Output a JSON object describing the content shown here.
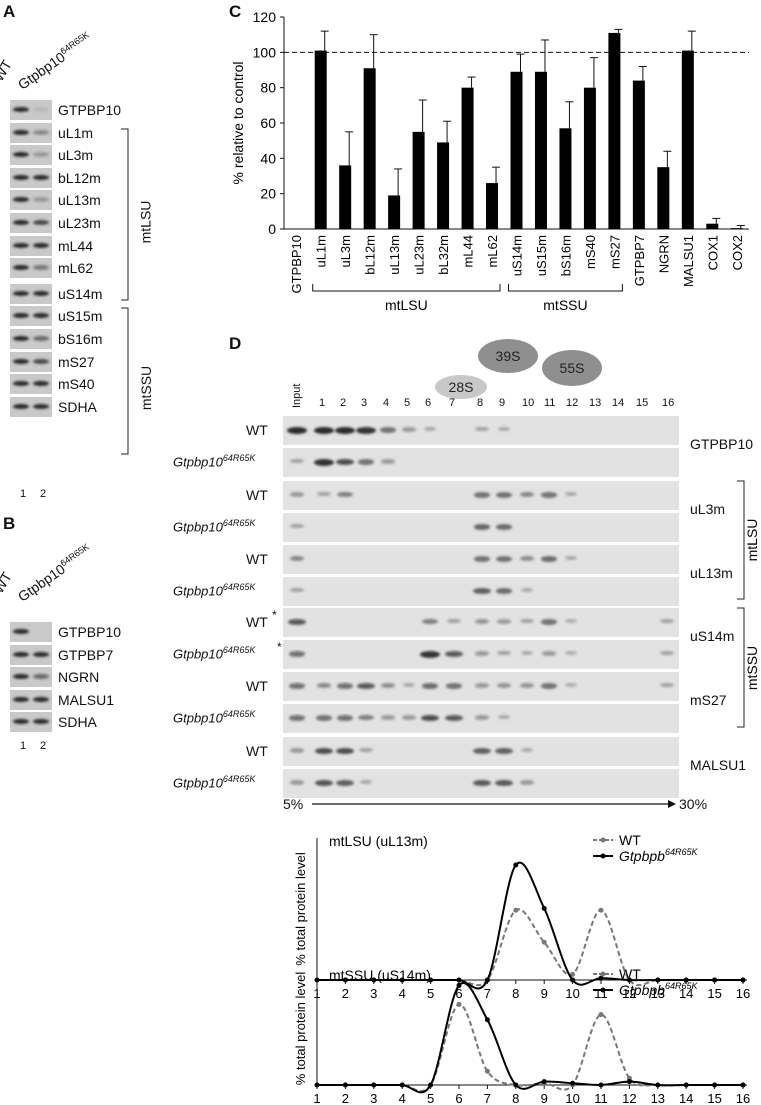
{
  "panels": {
    "a": "A",
    "b": "B",
    "c": "C",
    "d": "D"
  },
  "panel_a": {
    "lane_wt": "WT",
    "lane_mut_base": "Gtpbp10",
    "lane_mut_sup": "64R65K",
    "rows": [
      "GTPBP10",
      "uL1m",
      "uL3m",
      "bL12m",
      "uL13m",
      "uL23m",
      "mL44",
      "mL62",
      "uS14m",
      "uS15m",
      "bS16m",
      "mS27",
      "mS40",
      "SDHA"
    ],
    "group_lsu": "mtLSU",
    "group_ssu": "mtSSU",
    "lane_nums": [
      "1",
      "2"
    ]
  },
  "panel_b": {
    "lane_wt": "WT",
    "lane_mut_base": "Gtpbp10",
    "lane_mut_sup": "64R65K",
    "rows": [
      "GTPBP10",
      "GTPBP7",
      "NGRN",
      "MALSU1",
      "SDHA"
    ],
    "lane_nums": [
      "1",
      "2"
    ]
  },
  "panel_c": {
    "chart_data": {
      "type": "bar",
      "ylabel": "% relative to control",
      "ylim": [
        0,
        120
      ],
      "yticks": [
        0,
        20,
        40,
        60,
        80,
        100,
        120
      ],
      "reference_line": 100,
      "categories": [
        "GTPBP10",
        "uL1m",
        "uL3m",
        "bL12m",
        "uL13m",
        "uL23m",
        "bL32m",
        "mL44",
        "mL62",
        "uS14m",
        "uS15m",
        "bS16m",
        "mS40",
        "mS27",
        "GTPBP7",
        "NGRN",
        "MALSU1",
        "COX1",
        "COX2"
      ],
      "values": [
        0,
        101,
        36,
        91,
        19,
        55,
        49,
        80,
        26,
        89,
        89,
        57,
        80,
        111,
        84,
        35,
        101,
        3,
        0.5
      ],
      "errors": [
        0,
        11,
        19,
        19,
        15,
        18,
        12,
        6,
        9,
        10,
        18,
        15,
        17,
        2,
        8,
        9,
        11,
        3,
        1.5
      ],
      "groups": [
        {
          "label": "mtLSU",
          "from": 1,
          "to": 8
        },
        {
          "label": "mtSSU",
          "from": 9,
          "to": 13
        }
      ]
    }
  },
  "panel_d": {
    "particles": [
      "28S",
      "39S",
      "55S"
    ],
    "lanes": [
      "Input",
      "1",
      "2",
      "3",
      "4",
      "5",
      "6",
      "7",
      "8",
      "9",
      "10",
      "11",
      "12",
      "13",
      "14",
      "15",
      "16"
    ],
    "wt": "WT",
    "mut_base": "Gtpbp10",
    "mut_sup": "64R65K",
    "asterisk": "*",
    "blots": [
      {
        "protein": "GTPBP10",
        "wt": [
          3,
          3,
          3,
          2,
          1,
          0.4,
          0.2,
          0,
          0.3,
          0.2,
          0,
          0,
          0,
          0,
          0,
          0,
          0
        ],
        "mut": [
          0.3,
          2,
          1.6,
          1,
          0.4,
          0,
          0,
          0,
          0,
          0,
          0,
          0,
          0,
          0,
          0,
          0,
          0
        ]
      },
      {
        "protein": "uL3m",
        "wt": [
          0.4,
          0.3,
          0.8,
          0,
          0,
          0,
          0,
          0,
          1,
          1,
          0.7,
          1,
          0.2,
          0,
          0,
          0,
          0
        ],
        "mut": [
          0.3,
          0,
          0,
          0,
          0,
          0,
          0,
          0,
          1.2,
          1.1,
          0,
          0,
          0,
          0,
          0,
          0,
          0
        ]
      },
      {
        "protein": "uL13m",
        "wt": [
          0.7,
          0,
          0,
          0,
          0,
          0,
          0,
          0,
          1,
          1,
          0.6,
          1.1,
          0.2,
          0,
          0,
          0,
          0
        ],
        "mut": [
          0.3,
          0,
          0,
          0,
          0,
          0,
          0,
          0,
          1.3,
          1.1,
          0.2,
          0,
          0,
          0,
          0,
          0,
          0
        ]
      },
      {
        "protein": "uS14m",
        "wt": [
          1.4,
          0,
          0,
          0,
          0,
          0,
          0.8,
          0.3,
          0.5,
          0.4,
          0.3,
          1,
          0.1,
          0,
          0,
          0,
          0.3
        ],
        "mut": [
          1,
          0,
          0,
          0,
          0,
          0,
          2,
          1.4,
          0.4,
          0.3,
          0.2,
          0.4,
          0.1,
          0,
          0,
          0,
          0.3
        ]
      },
      {
        "protein": "mS27",
        "wt": [
          1,
          0.7,
          1,
          1.4,
          0.6,
          0.2,
          1.1,
          1,
          0.4,
          0.5,
          0.5,
          1,
          0.1,
          0,
          0,
          0,
          0.3
        ],
        "mut": [
          1,
          1,
          1,
          0.8,
          0.4,
          0.4,
          1.6,
          1.4,
          0.4,
          0.2,
          0,
          0,
          0,
          0,
          0,
          0,
          0
        ]
      },
      {
        "protein": "MALSU1",
        "wt": [
          0.4,
          1.6,
          1.6,
          0.3,
          0,
          0,
          0,
          0,
          1.3,
          1.3,
          0.2,
          0,
          0,
          0,
          0,
          0,
          0
        ],
        "mut": [
          0.4,
          1.5,
          1.3,
          0.2,
          0,
          0,
          0,
          0,
          1.4,
          1.4,
          0.4,
          0,
          0,
          0,
          0,
          0,
          0
        ]
      }
    ],
    "group_lsu": "mtLSU",
    "group_ssu": "mtSSU",
    "gradient_start": "5%",
    "gradient_end": "30%"
  },
  "lower_charts": {
    "chart_data": [
      {
        "type": "line",
        "title": "mtLSU (uL13m)",
        "ylabel": "% total protein level",
        "x": [
          1,
          2,
          3,
          4,
          5,
          6,
          7,
          8,
          9,
          10,
          11,
          12,
          13,
          14,
          15,
          16
        ],
        "series": [
          {
            "name": "WT",
            "values": [
              0,
              0,
              0,
              0,
              0,
              0,
              0,
              37,
              20,
              3,
              37,
              0,
              0,
              0,
              0,
              0
            ]
          },
          {
            "name": "Gtpbpb64R65K",
            "values": [
              0,
              0,
              0,
              0,
              0,
              0,
              0,
              61,
              38,
              0,
              1,
              0,
              0,
              0,
              0,
              0
            ]
          }
        ]
      },
      {
        "type": "line",
        "title": "mtSSU (uS14m)",
        "ylabel": "% total protein level",
        "x": [
          1,
          2,
          3,
          4,
          5,
          6,
          7,
          8,
          9,
          10,
          11,
          12,
          13,
          14,
          15,
          16
        ],
        "series": [
          {
            "name": "WT",
            "values": [
              0,
              0,
              0,
              0,
              0,
              47,
              8,
              0,
              1,
              0,
              41,
              4,
              0,
              0,
              0,
              0
            ]
          },
          {
            "name": "Gtpbpb64R65K",
            "values": [
              0,
              0,
              0,
              0,
              0,
              58,
              38,
              0,
              2,
              1,
              0,
              2,
              0,
              0,
              0,
              0
            ]
          }
        ]
      }
    ],
    "legend_wt": "WT",
    "legend_mut_base": "Gtpbpb",
    "legend_mut_sup": "64R65K"
  }
}
